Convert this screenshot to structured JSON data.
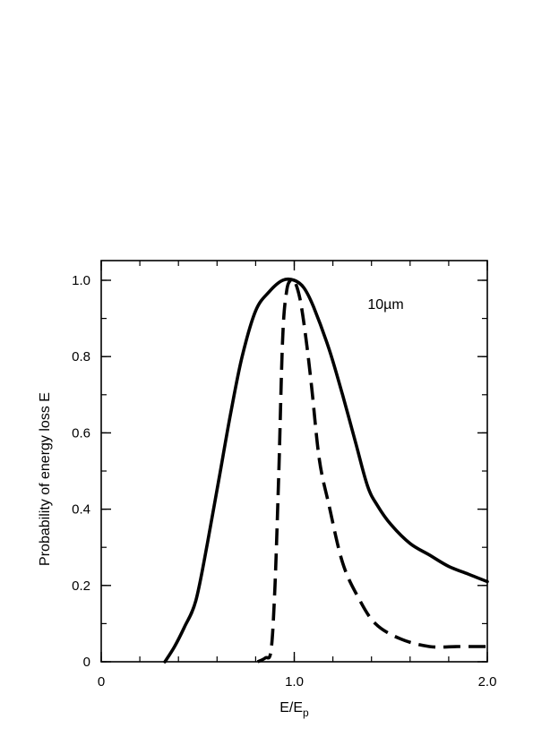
{
  "chart_data": {
    "type": "line",
    "title": "",
    "xlabel": "E/E",
    "xlabel_subscript": "p",
    "ylabel": "Probability of energy loss E",
    "xlim": [
      0,
      2.0
    ],
    "ylim": [
      0,
      1.05
    ],
    "x_ticks": [
      {
        "value": 0,
        "label": "0"
      },
      {
        "value": 1.0,
        "label": "1.0"
      },
      {
        "value": 2.0,
        "label": "2.0"
      }
    ],
    "y_ticks": [
      {
        "value": 0,
        "label": "0"
      },
      {
        "value": 0.2,
        "label": "0.2"
      },
      {
        "value": 0.4,
        "label": "0.4"
      },
      {
        "value": 0.6,
        "label": "0.6"
      },
      {
        "value": 0.8,
        "label": "0.8"
      },
      {
        "value": 1.0,
        "label": "1.0"
      }
    ],
    "minor_ticks": {
      "x_step": 0.2,
      "y_step": 0.1
    },
    "grid": false,
    "annotation": {
      "text": "10µm",
      "x": 1.38,
      "y": 0.925
    },
    "series": [
      {
        "style": "solid",
        "color": "#000000",
        "x": [
          0.33,
          0.38,
          0.43,
          0.49,
          0.55,
          0.61,
          0.67,
          0.73,
          0.8,
          0.87,
          0.94,
          1.0,
          1.05,
          1.1,
          1.18,
          1.25,
          1.32,
          1.38,
          1.43,
          1.5,
          1.6,
          1.7,
          1.8,
          1.9,
          2.0
        ],
        "y": [
          0.0,
          0.04,
          0.09,
          0.16,
          0.31,
          0.48,
          0.65,
          0.8,
          0.92,
          0.97,
          1.0,
          1.0,
          0.98,
          0.93,
          0.82,
          0.7,
          0.57,
          0.46,
          0.41,
          0.36,
          0.31,
          0.28,
          0.25,
          0.23,
          0.21
        ]
      },
      {
        "style": "dashed",
        "color": "#000000",
        "x": [
          0.81,
          0.85,
          0.88,
          0.9,
          0.92,
          0.94,
          0.96,
          0.98,
          1.0,
          1.03,
          1.06,
          1.09,
          1.13,
          1.18,
          1.25,
          1.33,
          1.42,
          1.55,
          1.7,
          1.85,
          2.0
        ],
        "y": [
          0.0,
          0.01,
          0.03,
          0.2,
          0.5,
          0.85,
          0.97,
          1.0,
          1.0,
          0.95,
          0.85,
          0.72,
          0.53,
          0.41,
          0.26,
          0.17,
          0.1,
          0.06,
          0.04,
          0.04,
          0.04
        ]
      }
    ]
  }
}
